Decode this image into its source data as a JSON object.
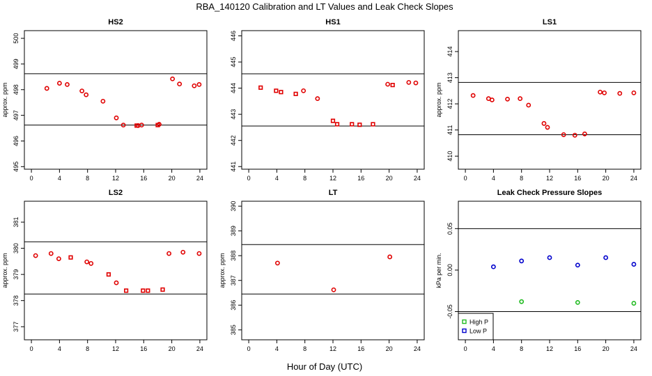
{
  "main_title": "RBA_140120  Calibration and LT Values and Leak Check Slopes",
  "x_axis_label": "Hour of Day (UTC)",
  "chart_data": [
    {
      "id": "HS2",
      "type": "scatter",
      "title": "HS2",
      "ylabel": "approx. ppm",
      "xlim": [
        -1,
        25
      ],
      "ylim": [
        494.9,
        500.3
      ],
      "xticks": [
        0,
        4,
        8,
        12,
        16,
        20,
        24
      ],
      "yticks": [
        495,
        496,
        497,
        498,
        499,
        500
      ],
      "hlines": [
        498.62,
        496.62
      ],
      "series": [
        {
          "marker": "circle",
          "color": "#e00000",
          "x": [
            2.2,
            4.0,
            5.1,
            7.2,
            7.8,
            10.2,
            12.1,
            13.1,
            15.2,
            15.7,
            18.2,
            20.1,
            21.1,
            23.2,
            23.9
          ],
          "y": [
            498.05,
            498.25,
            498.2,
            497.95,
            497.8,
            497.55,
            496.9,
            496.62,
            496.6,
            496.62,
            496.65,
            498.42,
            498.22,
            498.15,
            498.2
          ]
        },
        {
          "marker": "square",
          "color": "#e00000",
          "x": [
            15.0,
            18.0
          ],
          "y": [
            496.6,
            496.62
          ]
        }
      ]
    },
    {
      "id": "HS1",
      "type": "scatter",
      "title": "HS1",
      "ylabel": "",
      "xlim": [
        -1,
        25
      ],
      "ylim": [
        440.9,
        446.2
      ],
      "xticks": [
        0,
        4,
        8,
        12,
        16,
        20,
        24
      ],
      "yticks": [
        441,
        442,
        443,
        444,
        445,
        446
      ],
      "hlines": [
        444.55,
        442.55
      ],
      "series": [
        {
          "marker": "square",
          "color": "#e00000",
          "x": [
            1.7,
            3.9,
            4.6,
            6.7,
            12.0,
            12.6,
            14.7,
            15.8,
            17.7,
            20.5
          ],
          "y": [
            444.02,
            443.9,
            443.85,
            443.78,
            442.75,
            442.62,
            442.62,
            442.6,
            442.62,
            444.12
          ]
        },
        {
          "marker": "circle",
          "color": "#e00000",
          "x": [
            7.8,
            9.8,
            19.8,
            22.8,
            23.8
          ],
          "y": [
            443.9,
            443.6,
            444.15,
            444.22,
            444.2
          ]
        }
      ]
    },
    {
      "id": "LS1",
      "type": "scatter",
      "title": "LS1",
      "ylabel": "approx. ppm",
      "xlim": [
        -1,
        25
      ],
      "ylim": [
        409.5,
        414.8
      ],
      "xticks": [
        0,
        4,
        8,
        12,
        16,
        20,
        24
      ],
      "yticks": [
        410,
        411,
        412,
        413,
        414
      ],
      "hlines": [
        412.82,
        410.82
      ],
      "series": [
        {
          "marker": "circle",
          "color": "#e00000",
          "x": [
            1.1,
            3.3,
            3.8,
            6.0,
            7.8,
            9.0,
            11.2,
            11.7,
            14.0,
            15.6,
            17.0,
            19.2,
            19.8,
            22.0,
            24.0
          ],
          "y": [
            412.32,
            412.2,
            412.15,
            412.18,
            412.2,
            411.95,
            411.25,
            411.1,
            410.82,
            410.8,
            410.85,
            412.45,
            412.42,
            412.4,
            412.42
          ]
        }
      ]
    },
    {
      "id": "LS2",
      "type": "scatter",
      "title": "LS2",
      "ylabel": "approx. ppm",
      "xlim": [
        -1,
        25
      ],
      "ylim": [
        376.5,
        381.8
      ],
      "xticks": [
        0,
        4,
        8,
        12,
        16,
        20,
        24
      ],
      "yticks": [
        377,
        378,
        379,
        380,
        381
      ],
      "hlines": [
        380.25,
        378.25
      ],
      "series": [
        {
          "marker": "circle",
          "color": "#e00000",
          "x": [
            0.6,
            2.8,
            3.9,
            7.9,
            8.5,
            12.1,
            19.6,
            21.6,
            23.9
          ],
          "y": [
            379.72,
            379.8,
            379.6,
            379.48,
            379.42,
            378.68,
            379.8,
            379.85,
            379.8
          ]
        },
        {
          "marker": "square",
          "color": "#e00000",
          "x": [
            5.6,
            11.0,
            13.5,
            15.9,
            16.6,
            18.7
          ],
          "y": [
            379.65,
            379.0,
            378.38,
            378.38,
            378.38,
            378.42
          ]
        }
      ]
    },
    {
      "id": "LT",
      "type": "scatter",
      "title": "LT",
      "ylabel": "approx. ppm",
      "xlim": [
        -1,
        25
      ],
      "ylim": [
        384.6,
        390.2
      ],
      "xticks": [
        0,
        4,
        8,
        12,
        16,
        20,
        24
      ],
      "yticks": [
        385,
        386,
        387,
        388,
        389,
        390
      ],
      "hlines": [
        388.45,
        386.45
      ],
      "series": [
        {
          "marker": "circle",
          "color": "#e00000",
          "x": [
            4.1,
            12.1,
            20.1
          ],
          "y": [
            387.7,
            386.62,
            387.95
          ]
        }
      ]
    },
    {
      "id": "LeakCheck",
      "type": "scatter",
      "title": "Leak Check Pressure Slopes",
      "ylabel": "kPa per min.",
      "xlim": [
        -1,
        25
      ],
      "ylim": [
        -0.084,
        0.083
      ],
      "xticks": [
        0,
        4,
        8,
        12,
        16,
        20,
        24
      ],
      "yticks": [
        -0.05,
        0.0,
        0.05
      ],
      "ytick_labels": [
        "-0.05",
        "0.00",
        "0.05"
      ],
      "hlines": [
        0.05,
        -0.05
      ],
      "legend": {
        "position": "bottom-left"
      },
      "series": [
        {
          "name": "High P",
          "marker": "circle",
          "color": "#22bb22",
          "x": [
            8,
            16,
            24
          ],
          "y": [
            -0.038,
            -0.039,
            -0.04
          ]
        },
        {
          "name": "Low P",
          "marker": "circle",
          "color": "#0000cc",
          "x": [
            4,
            8,
            12,
            16,
            20,
            24
          ],
          "y": [
            0.004,
            0.011,
            0.015,
            0.006,
            0.015,
            0.007
          ]
        }
      ]
    }
  ]
}
